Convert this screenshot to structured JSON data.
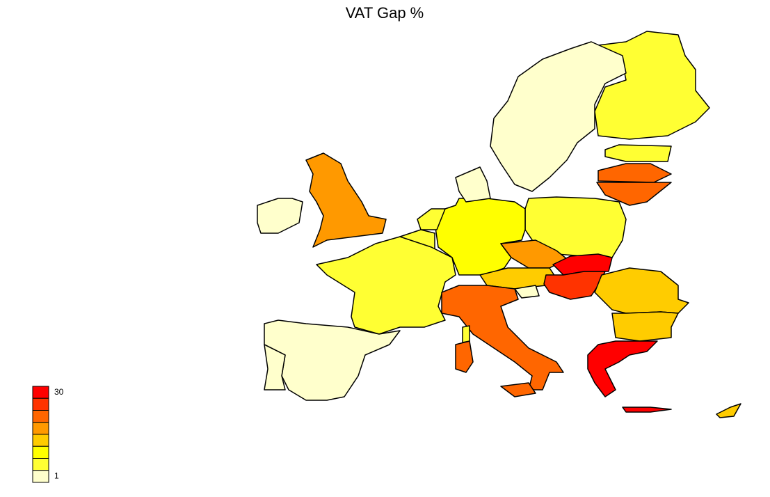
{
  "title": "VAT Gap %",
  "legend": {
    "max": 30,
    "min": 1,
    "colors": [
      "#ff0000",
      "#ff3300",
      "#ff6600",
      "#ff9900",
      "#ffcc00",
      "#ffff00",
      "#ffff33",
      "#ffffcc"
    ]
  }
}
